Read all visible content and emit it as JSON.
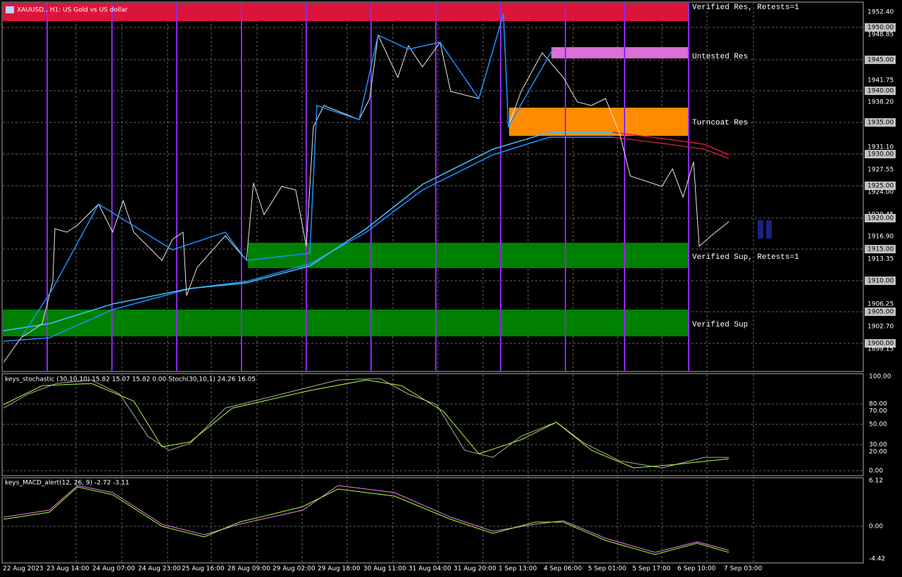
{
  "header": {
    "title": "XAUUSD., H1: US Gold vs US dollar"
  },
  "zones": [
    "Verified Res, Retests=1",
    "Untested Res",
    "Turncoat Res",
    "Verified Sup, Retests=1",
    "Verified Sup"
  ],
  "price_axis": [
    "1952.40",
    "1950.00",
    "1948.85",
    "1945.00",
    "1941.75",
    "1940.00",
    "1938.20",
    "1935.00",
    "1931.10",
    "1930.00",
    "1927.55",
    "1925.00",
    "1924.00",
    "1920.45",
    "1920.00",
    "1916.90",
    "1915.00",
    "1913.35",
    "1910.00",
    "1906.25",
    "1905.00",
    "1902.70",
    "1900.00",
    "1899.15"
  ],
  "stochastic": {
    "label": "keys_stochastic (30,10,10) 15.82 15.07 15.82 0.00 Stoch(30,10,1) 24.26 16.05",
    "axis": [
      "100.00",
      "80.00",
      "70.00",
      "50.00",
      "30.00",
      "20.00",
      "0.00"
    ]
  },
  "macd": {
    "label": "keys_MACD_alert(12, 26, 9) -2.72 -3.11",
    "axis": [
      "6.12",
      "0.00",
      "-4.42"
    ]
  },
  "time_axis": [
    "22 Aug 2023",
    "23 Aug 14:00",
    "24 Aug 07:00",
    "24 Aug 23:00",
    "25 Aug 16:00",
    "28 Aug 09:00",
    "29 Aug 02:00",
    "29 Aug 18:00",
    "30 Aug 11:00",
    "31 Aug 04:00",
    "31 Aug 20:00",
    "1 Sep 13:00",
    "4 Sep 06:00",
    "5 Sep 01:00",
    "5 Sep 17:00",
    "6 Sep 10:00",
    "7 Sep 03:00"
  ]
}
